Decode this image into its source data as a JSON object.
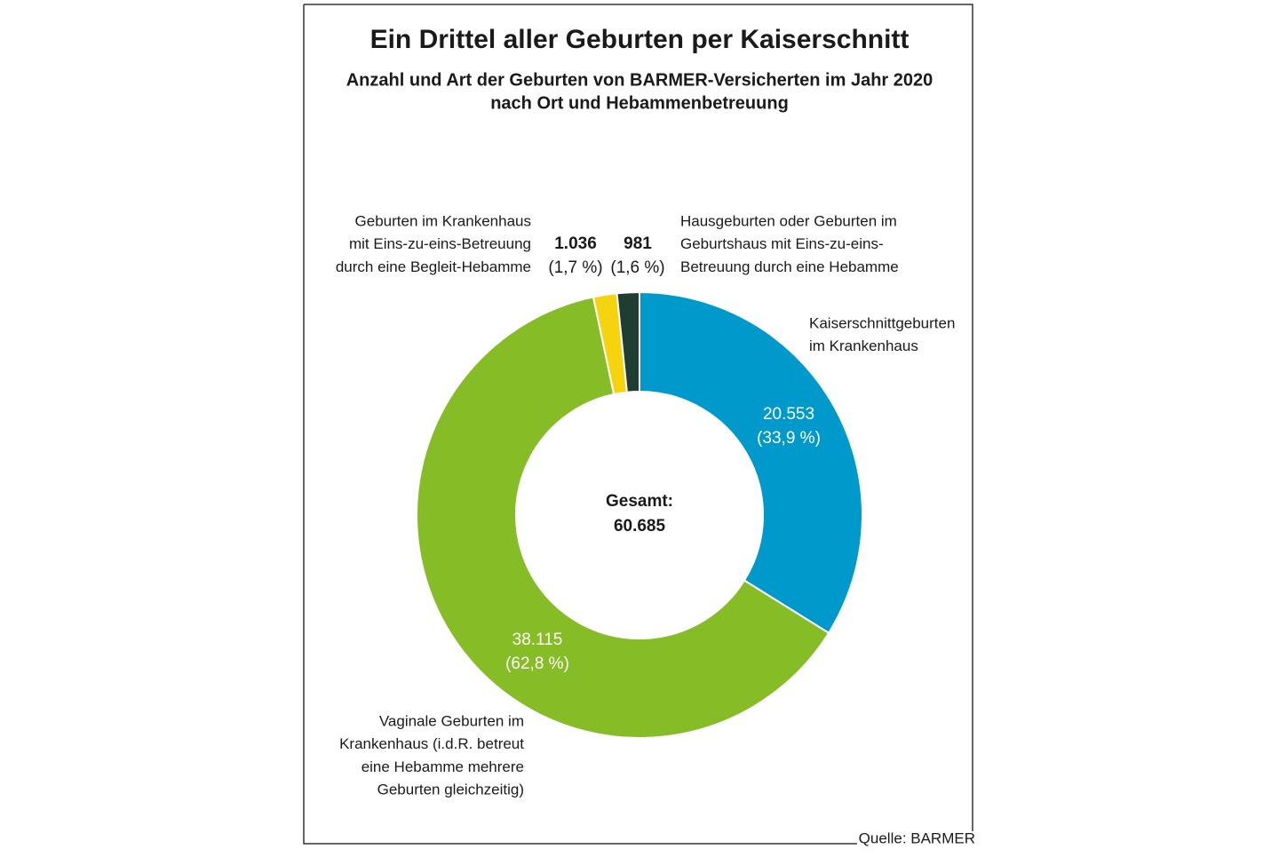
{
  "chart_data": {
    "type": "donut",
    "title": "Ein Drittel aller Geburten per Kaiserschnitt",
    "subtitle": [
      "Anzahl und Art der Geburten von BARMER-Versicherten im Jahr 2020",
      "nach Ort und Hebammenbetreuung"
    ],
    "categories": [
      [
        "Kaiserschnittgeburten",
        "im Krankenhaus"
      ],
      [
        "Vaginale Geburten im",
        "Krankenhaus (i.d.R. betreut",
        "eine Hebamme mehrere",
        "Geburten gleichzeitig)"
      ],
      [
        "Geburten im Krankenhaus",
        "mit Eins-zu-eins-Betreuung",
        "durch eine Begleit-Hebamme"
      ],
      [
        "Hausgeburten oder Geburten im",
        "Geburtshaus mit Eins-zu-eins-",
        "Betreuung durch eine Hebamme"
      ]
    ],
    "values": [
      20553,
      38115,
      1036,
      981
    ],
    "value_labels": [
      "20.553",
      "38.115",
      "1.036",
      "981"
    ],
    "percent_labels": [
      "(33,9 %)",
      "(62,8 %)",
      "(1,7 %)",
      "(1,6 %)"
    ],
    "colors": [
      "#0099cc",
      "#86bc25",
      "#f5d40f",
      "#1f3d33"
    ],
    "total": {
      "label": "Gesamt:",
      "value": 60685,
      "value_label": "60.685"
    },
    "source": "Quelle: BARMER"
  }
}
